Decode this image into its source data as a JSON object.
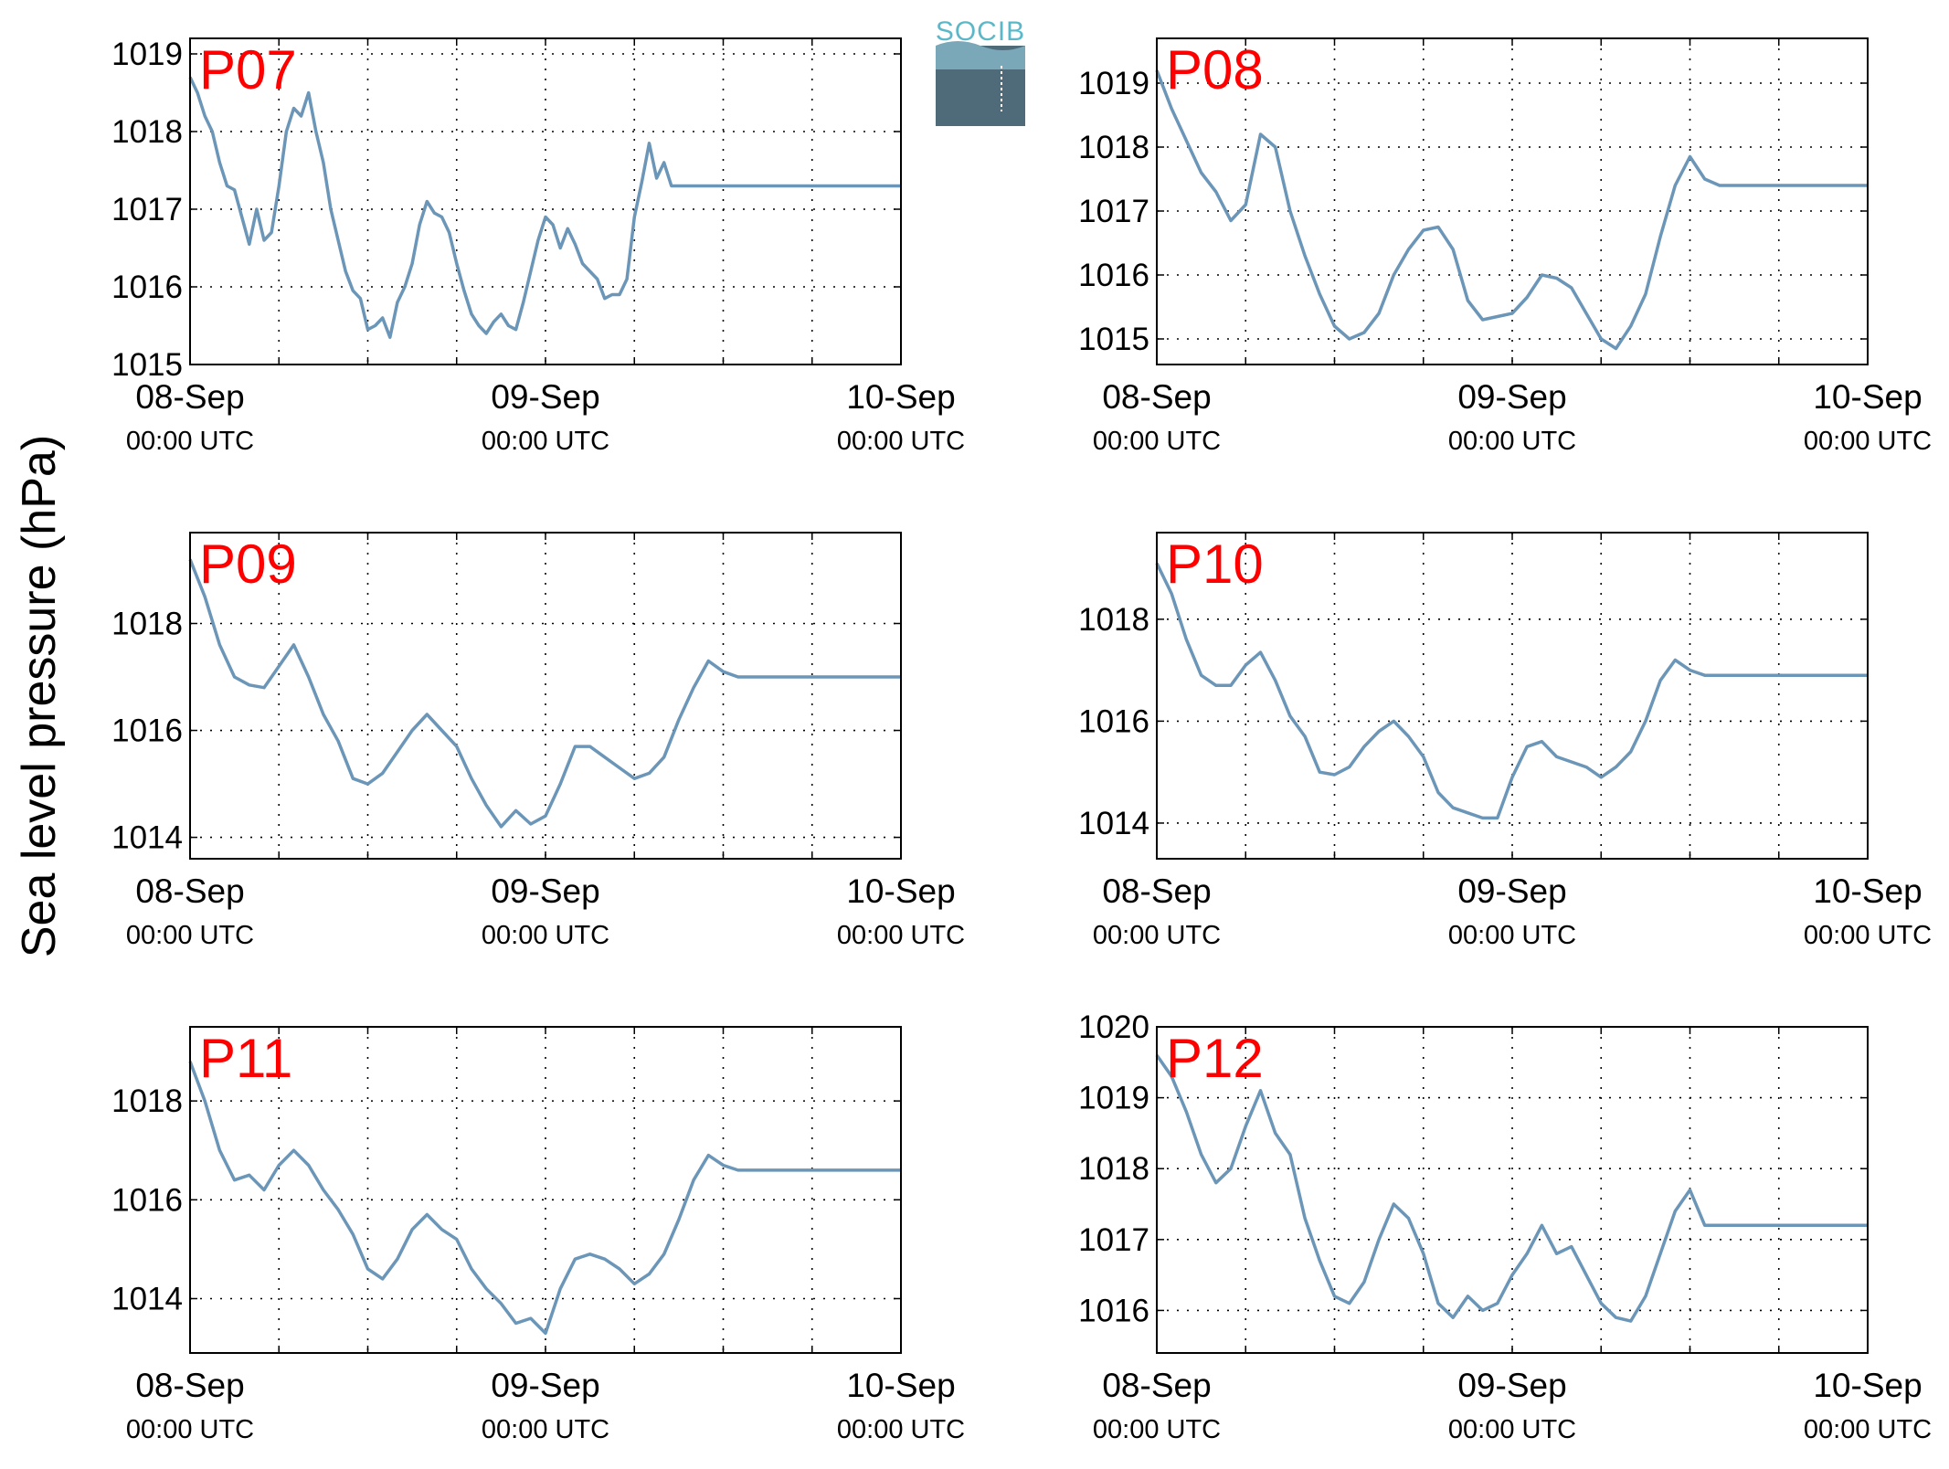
{
  "figure": {
    "ylabel": "Sea level pressure (hPa)",
    "logo_text": "SOCIB",
    "line_color": "#6b96b8",
    "title_color": "#ff0000"
  },
  "chart_data": [
    {
      "type": "line",
      "title": "P07",
      "xlabel": "",
      "ylabel": "Sea level pressure (hPa)",
      "x_ticks": [
        {
          "date": "08-Sep",
          "time": "00:00 UTC"
        },
        {
          "date": "09-Sep",
          "time": "00:00 UTC"
        },
        {
          "date": "10-Sep",
          "time": "00:00 UTC"
        }
      ],
      "xlim_hours": [
        0,
        48
      ],
      "ylim": [
        1015,
        1019.2
      ],
      "yticks": [
        1015,
        1016,
        1017,
        1018,
        1019
      ],
      "grid": true,
      "series": [
        {
          "x_hours": [
            0,
            0.5,
            1,
            1.5,
            2,
            2.5,
            3,
            3.5,
            4,
            4.5,
            5,
            5.5,
            6,
            6.5,
            7,
            7.5,
            8,
            8.5,
            9,
            9.5,
            10,
            10.5,
            11,
            11.5,
            12,
            12.5,
            13,
            13.5,
            14,
            14.5,
            15,
            15.5,
            16,
            16.5,
            17,
            17.5,
            18,
            18.5,
            19,
            19.5,
            20,
            20.5,
            21,
            21.5,
            22,
            22.5,
            23,
            23.5,
            24,
            24.5,
            25,
            25.5,
            26,
            26.5,
            27,
            27.5,
            28,
            28.5,
            29,
            29.5,
            30,
            30.5,
            31,
            31.5,
            32,
            32.5,
            33,
            33.5,
            34,
            34.5,
            35,
            35.5,
            36,
            36.5,
            37,
            37.5,
            38,
            38.5,
            39,
            39.5,
            40,
            40.5,
            41,
            41.5,
            42,
            42.5,
            43,
            43.5,
            44,
            44.5,
            45,
            45.5,
            46,
            46.5,
            47,
            47.5,
            48
          ],
          "y": [
            1018.7,
            1018.5,
            1018.2,
            1018.0,
            1017.6,
            1017.3,
            1017.25,
            1016.9,
            1016.55,
            1017.0,
            1016.6,
            1016.7,
            1017.3,
            1018.0,
            1018.3,
            1018.2,
            1018.5,
            1018.0,
            1017.6,
            1017.0,
            1016.6,
            1016.2,
            1015.95,
            1015.85,
            1015.45,
            1015.5,
            1015.6,
            1015.35,
            1015.8,
            1016.0,
            1016.3,
            1016.8,
            1017.1,
            1016.95,
            1016.9,
            1016.7,
            1016.3,
            1015.95,
            1015.65,
            1015.5,
            1015.4,
            1015.55,
            1015.65,
            1015.5,
            1015.45,
            1015.8,
            1016.2,
            1016.6,
            1016.9,
            1016.8,
            1016.5,
            1016.75,
            1016.55,
            1016.3,
            1016.2,
            1016.1,
            1015.85,
            1015.9,
            1015.9,
            1016.1,
            1016.9,
            1017.35,
            1017.85,
            1017.4,
            1017.6,
            1017.3,
            1017.3,
            1017.3,
            1017.3,
            1017.3,
            1017.3,
            1017.3,
            1017.3,
            1017.3,
            1017.3,
            1017.3,
            1017.3,
            1017.3,
            1017.3,
            1017.3,
            1017.3,
            1017.3,
            1017.3,
            1017.3,
            1017.3,
            1017.3,
            1017.3,
            1017.3,
            1017.3,
            1017.3,
            1017.3,
            1017.3,
            1017.3,
            1017.3,
            1017.3,
            1017.3,
            1017.3
          ]
        }
      ]
    },
    {
      "type": "line",
      "title": "P08",
      "xlabel": "",
      "ylabel": "Sea level pressure (hPa)",
      "x_ticks": [
        {
          "date": "08-Sep",
          "time": "00:00 UTC"
        },
        {
          "date": "09-Sep",
          "time": "00:00 UTC"
        },
        {
          "date": "10-Sep",
          "time": "00:00 UTC"
        }
      ],
      "xlim_hours": [
        0,
        48
      ],
      "ylim": [
        1014.6,
        1019.7
      ],
      "yticks": [
        1015,
        1016,
        1017,
        1018,
        1019
      ],
      "grid": true,
      "series": [
        {
          "x_hours": [
            0,
            1,
            2,
            3,
            4,
            5,
            6,
            7,
            8,
            9,
            10,
            11,
            12,
            13,
            14,
            15,
            16,
            17,
            18,
            19,
            20,
            21,
            22,
            23,
            24,
            25,
            26,
            27,
            28,
            29,
            30,
            31,
            32,
            33,
            34,
            35,
            36,
            37,
            38,
            39,
            40,
            41,
            42,
            43,
            44,
            45,
            46,
            47,
            48
          ],
          "y": [
            1019.2,
            1018.6,
            1018.1,
            1017.6,
            1017.3,
            1016.85,
            1017.1,
            1018.2,
            1018.0,
            1017.0,
            1016.3,
            1015.7,
            1015.2,
            1015.0,
            1015.1,
            1015.4,
            1016.0,
            1016.4,
            1016.7,
            1016.75,
            1016.4,
            1015.6,
            1015.3,
            1015.35,
            1015.4,
            1015.65,
            1016.0,
            1015.95,
            1015.8,
            1015.4,
            1015.0,
            1014.85,
            1015.2,
            1015.7,
            1016.6,
            1017.4,
            1017.85,
            1017.5,
            1017.4,
            1017.4,
            1017.4,
            1017.4,
            1017.4,
            1017.4,
            1017.4,
            1017.4,
            1017.4,
            1017.4,
            1017.4
          ]
        }
      ]
    },
    {
      "type": "line",
      "title": "P09",
      "xlabel": "",
      "ylabel": "Sea level pressure (hPa)",
      "x_ticks": [
        {
          "date": "08-Sep",
          "time": "00:00 UTC"
        },
        {
          "date": "09-Sep",
          "time": "00:00 UTC"
        },
        {
          "date": "10-Sep",
          "time": "00:00 UTC"
        }
      ],
      "xlim_hours": [
        0,
        48
      ],
      "ylim": [
        1013.6,
        1019.7
      ],
      "yticks": [
        1014,
        1016,
        1018
      ],
      "grid": true,
      "series": [
        {
          "x_hours": [
            0,
            1,
            2,
            3,
            4,
            5,
            6,
            7,
            8,
            9,
            10,
            11,
            12,
            13,
            14,
            15,
            16,
            17,
            18,
            19,
            20,
            21,
            22,
            23,
            24,
            25,
            26,
            27,
            28,
            29,
            30,
            31,
            32,
            33,
            34,
            35,
            36,
            37,
            38,
            39,
            40,
            41,
            42,
            43,
            44,
            45,
            46,
            47,
            48
          ],
          "y": [
            1019.2,
            1018.5,
            1017.6,
            1017.0,
            1016.85,
            1016.8,
            1017.2,
            1017.6,
            1017.0,
            1016.3,
            1015.8,
            1015.1,
            1015.0,
            1015.2,
            1015.6,
            1016.0,
            1016.3,
            1016.0,
            1015.7,
            1015.1,
            1014.6,
            1014.2,
            1014.5,
            1014.25,
            1014.4,
            1015.0,
            1015.7,
            1015.7,
            1015.5,
            1015.3,
            1015.1,
            1015.2,
            1015.5,
            1016.2,
            1016.8,
            1017.3,
            1017.1,
            1017.0,
            1017.0,
            1017.0,
            1017.0,
            1017.0,
            1017.0,
            1017.0,
            1017.0,
            1017.0,
            1017.0,
            1017.0,
            1017.0
          ]
        }
      ]
    },
    {
      "type": "line",
      "title": "P10",
      "xlabel": "",
      "ylabel": "Sea level pressure (hPa)",
      "x_ticks": [
        {
          "date": "08-Sep",
          "time": "00:00 UTC"
        },
        {
          "date": "09-Sep",
          "time": "00:00 UTC"
        },
        {
          "date": "10-Sep",
          "time": "00:00 UTC"
        }
      ],
      "xlim_hours": [
        0,
        48
      ],
      "ylim": [
        1013.3,
        1019.7
      ],
      "yticks": [
        1014,
        1016,
        1018
      ],
      "grid": true,
      "series": [
        {
          "x_hours": [
            0,
            1,
            2,
            3,
            4,
            5,
            6,
            7,
            8,
            9,
            10,
            11,
            12,
            13,
            14,
            15,
            16,
            17,
            18,
            19,
            20,
            21,
            22,
            23,
            24,
            25,
            26,
            27,
            28,
            29,
            30,
            31,
            32,
            33,
            34,
            35,
            36,
            37,
            38,
            39,
            40,
            41,
            42,
            43,
            44,
            45,
            46,
            47,
            48
          ],
          "y": [
            1019.1,
            1018.5,
            1017.6,
            1016.9,
            1016.7,
            1016.7,
            1017.1,
            1017.35,
            1016.8,
            1016.1,
            1015.7,
            1015.0,
            1014.95,
            1015.1,
            1015.5,
            1015.8,
            1016.0,
            1015.7,
            1015.3,
            1014.6,
            1014.3,
            1014.2,
            1014.1,
            1014.1,
            1014.9,
            1015.5,
            1015.6,
            1015.3,
            1015.2,
            1015.1,
            1014.9,
            1015.1,
            1015.4,
            1016.0,
            1016.8,
            1017.2,
            1017.0,
            1016.9,
            1016.9,
            1016.9,
            1016.9,
            1016.9,
            1016.9,
            1016.9,
            1016.9,
            1016.9,
            1016.9,
            1016.9,
            1016.9
          ]
        }
      ]
    },
    {
      "type": "line",
      "title": "P11",
      "xlabel": "",
      "ylabel": "Sea level pressure (hPa)",
      "x_ticks": [
        {
          "date": "08-Sep",
          "time": "00:00 UTC"
        },
        {
          "date": "09-Sep",
          "time": "00:00 UTC"
        },
        {
          "date": "10-Sep",
          "time": "00:00 UTC"
        }
      ],
      "xlim_hours": [
        0,
        48
      ],
      "ylim": [
        1012.9,
        1019.5
      ],
      "yticks": [
        1014,
        1016,
        1018
      ],
      "grid": true,
      "series": [
        {
          "x_hours": [
            0,
            1,
            2,
            3,
            4,
            5,
            6,
            7,
            8,
            9,
            10,
            11,
            12,
            13,
            14,
            15,
            16,
            17,
            18,
            19,
            20,
            21,
            22,
            23,
            24,
            25,
            26,
            27,
            28,
            29,
            30,
            31,
            32,
            33,
            34,
            35,
            36,
            37,
            38,
            39,
            40,
            41,
            42,
            43,
            44,
            45,
            46,
            47,
            48
          ],
          "y": [
            1018.8,
            1018.0,
            1017.0,
            1016.4,
            1016.5,
            1016.2,
            1016.7,
            1017.0,
            1016.7,
            1016.2,
            1015.8,
            1015.3,
            1014.6,
            1014.4,
            1014.8,
            1015.4,
            1015.7,
            1015.4,
            1015.2,
            1014.6,
            1014.2,
            1013.9,
            1013.5,
            1013.6,
            1013.3,
            1014.2,
            1014.8,
            1014.9,
            1014.8,
            1014.6,
            1014.3,
            1014.5,
            1014.9,
            1015.6,
            1016.4,
            1016.9,
            1016.7,
            1016.6,
            1016.6,
            1016.6,
            1016.6,
            1016.6,
            1016.6,
            1016.6,
            1016.6,
            1016.6,
            1016.6,
            1016.6,
            1016.6
          ]
        }
      ]
    },
    {
      "type": "line",
      "title": "P12",
      "xlabel": "",
      "ylabel": "Sea level pressure (hPa)",
      "x_ticks": [
        {
          "date": "08-Sep",
          "time": "00:00 UTC"
        },
        {
          "date": "09-Sep",
          "time": "00:00 UTC"
        },
        {
          "date": "10-Sep",
          "time": "00:00 UTC"
        }
      ],
      "xlim_hours": [
        0,
        48
      ],
      "ylim": [
        1015.4,
        1020.0
      ],
      "yticks": [
        1016,
        1017,
        1018,
        1019,
        1020
      ],
      "grid": true,
      "series": [
        {
          "x_hours": [
            0,
            1,
            2,
            3,
            4,
            5,
            6,
            7,
            8,
            9,
            10,
            11,
            12,
            13,
            14,
            15,
            16,
            17,
            18,
            19,
            20,
            21,
            22,
            23,
            24,
            25,
            26,
            27,
            28,
            29,
            30,
            31,
            32,
            33,
            34,
            35,
            36,
            37,
            38,
            39,
            40,
            41,
            42,
            43,
            44,
            45,
            46,
            47,
            48
          ],
          "y": [
            1019.6,
            1019.3,
            1018.8,
            1018.2,
            1017.8,
            1018.0,
            1018.6,
            1019.1,
            1018.5,
            1018.2,
            1017.3,
            1016.7,
            1016.2,
            1016.1,
            1016.4,
            1017.0,
            1017.5,
            1017.3,
            1016.8,
            1016.1,
            1015.9,
            1016.2,
            1016.0,
            1016.1,
            1016.5,
            1016.8,
            1017.2,
            1016.8,
            1016.9,
            1016.5,
            1016.1,
            1015.9,
            1015.85,
            1016.2,
            1016.8,
            1017.4,
            1017.7,
            1017.2,
            1017.2,
            1017.2,
            1017.2,
            1017.2,
            1017.2,
            1017.2,
            1017.2,
            1017.2,
            1017.2,
            1017.2,
            1017.2
          ]
        }
      ]
    }
  ]
}
